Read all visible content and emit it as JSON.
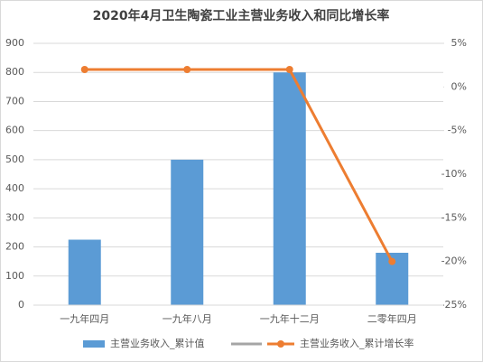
{
  "chart_data": {
    "type": "bar-line",
    "title": "2020年4月卫生陶瓷工业主营业务收入和同比增长率",
    "categories": [
      "一九年四月",
      "一九年八月",
      "一九年十二月",
      "二零年四月"
    ],
    "series": [
      {
        "name": "主营业务收入_累计值",
        "type": "bar",
        "color": "#5b9bd5",
        "values": [
          225,
          500,
          800,
          180
        ]
      },
      {
        "name": "主营业务收入_累计增长率",
        "type": "line",
        "axis": "y2",
        "color": "#ed7d31",
        "values": [
          2,
          2,
          2,
          -20
        ]
      }
    ],
    "ylim": [
      0,
      900
    ],
    "yticks": [
      0,
      100,
      200,
      300,
      400,
      500,
      600,
      700,
      800,
      900
    ],
    "y2lim": [
      -25,
      5
    ],
    "y2ticks": [
      {
        "value": 5,
        "label": "5%"
      },
      {
        "value": 0,
        "label": "0%"
      },
      {
        "value": -5,
        "label": "-5%"
      },
      {
        "value": -10,
        "label": "-10%"
      },
      {
        "value": -15,
        "label": "-15%"
      },
      {
        "value": -20,
        "label": "-20%"
      },
      {
        "value": -25,
        "label": "-25%"
      }
    ],
    "grid": true,
    "legend": "bottom"
  }
}
